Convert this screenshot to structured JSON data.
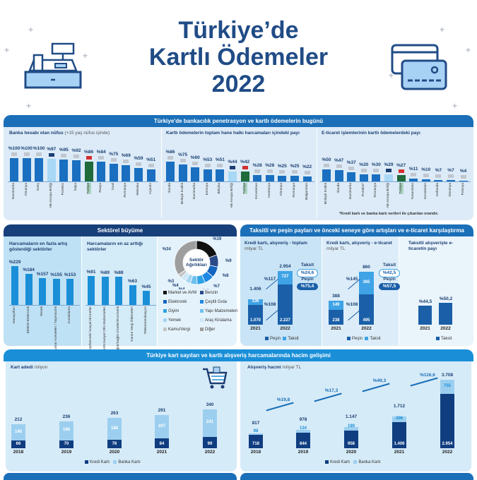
{
  "title": {
    "line1": "Türkiye’de",
    "line2": "Kartlı Ödemeler",
    "line3": "2022"
  },
  "icons": {
    "left": "cash-register-icon",
    "right": "credit-cards-icon",
    "cart": "shopping-cart-icon"
  },
  "colors": {
    "primary": "#1a6fc0",
    "navy": "#173f7a",
    "turkey": "#1f6b3a",
    "eu": "#a8d8f5",
    "panel": "#dcebf7"
  },
  "section1": {
    "header": "Türkiye'de bankacılık penetrasyon ve kartlı ödemelerin bugünü",
    "footnote": "*Kredi kartı ve banka kartı verileri ile çıkarılan orandır.",
    "value_prefix": "%",
    "charts": [
      {
        "title": "Banka hesabı olan nüfus",
        "subtitle": "(+15 yaş nüfus içinde)",
        "bars": [
          {
            "label": "Danimarka",
            "value": 100
          },
          {
            "label": "Almanya",
            "value": 100
          },
          {
            "label": "İsveç",
            "value": 100
          },
          {
            "label": "AB Avrupa Birliği",
            "value": 97,
            "kind": "eu"
          },
          {
            "label": "Portekiz",
            "value": 95
          },
          {
            "label": "İtalya",
            "value": 92
          },
          {
            "label": "Türkiye",
            "value": 86,
            "kind": "tr"
          },
          {
            "label": "Rusya",
            "value": 84
          },
          {
            "label": "İsrail",
            "value": 75
          },
          {
            "label": "Romanya",
            "value": 69
          },
          {
            "label": "Meksika",
            "value": 59
          },
          {
            "label": "Arjantin",
            "value": 51
          }
        ]
      },
      {
        "title": "Kartlı ödemelerin toplam hane halkı harcamaları içindeki payı",
        "subtitle": "",
        "bars": [
          {
            "label": "İrlanda",
            "value": 86
          },
          {
            "label": "Birleşik Krallık",
            "value": 75
          },
          {
            "label": "Danimarka",
            "value": 60
          },
          {
            "label": "Estonya",
            "value": 53
          },
          {
            "label": "Belçika",
            "value": 51
          },
          {
            "label": "AB Avrupa Birliği",
            "value": 44,
            "kind": "eu"
          },
          {
            "label": "Türkiye",
            "value": 42,
            "kind": "tr"
          },
          {
            "label": "Hırvatistan",
            "value": 28
          },
          {
            "label": "Avusturya",
            "value": 28
          },
          {
            "label": "Almanya",
            "value": 25
          },
          {
            "label": "Romanya",
            "value": 25
          },
          {
            "label": "Bulgaristan",
            "value": 22
          }
        ]
      },
      {
        "title": "E-ticaret işlemlerinin kartlı ödemelerdeki payı",
        "subtitle": "",
        "bars": [
          {
            "label": "Birleşik Krallık",
            "value": 50
          },
          {
            "label": "İrlanda",
            "value": 47
          },
          {
            "label": "Danimarka",
            "value": 37
          },
          {
            "label": "Portekiz*",
            "value": 30
          },
          {
            "label": "Romanya",
            "value": 30
          },
          {
            "label": "AB Avrupa Birliği",
            "value": 29,
            "kind": "eu"
          },
          {
            "label": "Türkiye",
            "value": 27,
            "kind": "tr"
          },
          {
            "label": "Yunanistan",
            "value": 11
          },
          {
            "label": "Hırvatistan",
            "value": 10
          },
          {
            "label": "Hollanda",
            "value": 7
          },
          {
            "label": "Slovenya",
            "value": 7
          },
          {
            "label": "Polonya",
            "value": 4
          }
        ]
      }
    ]
  },
  "section2": {
    "header": "Sektörel büyüme",
    "most": {
      "title": "Harcamaların en fazla artış gösterdiği sektörler",
      "bars": [
        {
          "label": "Havayolları",
          "value": 229
        },
        {
          "label": "Elektrik Elektronik",
          "value": 184
        },
        {
          "label": "Yemek",
          "value": 157
        },
        {
          "label": "Seyahat Acenteleri / Taşımacılık",
          "value": 155
        },
        {
          "label": "Konaklama",
          "value": 153
        }
      ]
    },
    "least": {
      "title": "Harcamaların en az arttığı sektörler",
      "bars": [
        {
          "label": "Kulüp/Dernek/ Sosyal Hizmetler",
          "value": 91
        },
        {
          "label": "Eğitim/Kırtasiye/ Ofis Malzemeleri",
          "value": 89
        },
        {
          "label": "Sağlık/Sağlık Ürünleri/Kozmetik",
          "value": 88
        },
        {
          "label": "Kamu/ Vergi Ödemeleri",
          "value": 63
        },
        {
          "label": "Telekomünikasyon",
          "value": 45
        }
      ]
    },
    "donut": {
      "center": "Sektör Ağırlıkları",
      "slices": [
        {
          "label": "Market ve AVM",
          "value": 19,
          "color": "#111111"
        },
        {
          "label": "Benzin",
          "value": 9,
          "color": "#2b4a8a"
        },
        {
          "label": "Elektronik",
          "value": 8,
          "color": "#1565c0"
        },
        {
          "label": "Çeşitli Gıda",
          "value": 7,
          "color": "#1e88e5"
        },
        {
          "label": "Giyim",
          "value": 6,
          "color": "#2ea3e6"
        },
        {
          "label": "Yapı Malzemeleri",
          "value": 5,
          "color": "#6cc0ee"
        },
        {
          "label": "Yemek",
          "value": 4,
          "color": "#a6d6f3"
        },
        {
          "label": "Araç Kiralama",
          "value": 4,
          "color": "#cde7f7"
        },
        {
          "label": "Kamu/Vergi",
          "value": 3,
          "color": "#c4c4c4"
        },
        {
          "label": "Diğer",
          "value": 34,
          "color": "#9e9e9e"
        }
      ]
    }
  },
  "section2b": {
    "header": "Taksitli ve peşin payları ve önceki seneye göre artışları ve e-ticaret karşılaştırma",
    "chartA": {
      "title": "Kredi kartı, alışveriş - toplam",
      "unit": "milyar TL",
      "years": [
        "2021",
        "2022"
      ],
      "pesin": [
        1070,
        2227
      ],
      "taksit": [
        336,
        727
      ],
      "totals": [
        1406,
        2954
      ],
      "growth_taksit": "%117",
      "growth_pesin": "%108",
      "share_taksit_label": "Taksit",
      "share_taksit": "%24,6",
      "share_pesin_label": "Peşin",
      "share_pesin": "%75,4"
    },
    "chartB": {
      "title": "Kredi kartı, alışveriş - e-ticaret",
      "unit": "milyar TL",
      "years": [
        "2021",
        "2022"
      ],
      "pesin": [
        238,
        495
      ],
      "taksit": [
        149,
        365
      ],
      "totals": [
        388,
        860
      ],
      "growth_taksit": "%145",
      "growth_pesin": "%108",
      "share_taksit_label": "Taksit",
      "share_taksit": "%42,5",
      "share_pesin_label": "Peşin",
      "share_pesin": "%57,5"
    },
    "chartC": {
      "title": "Taksitli alışverişte e-ticaretin payı",
      "years": [
        "2021",
        "2022"
      ],
      "values": [
        44.5,
        50.2
      ],
      "labels": [
        "%44,5",
        "%50,2"
      ]
    },
    "legend": {
      "pesin": "Peşin",
      "taksit": "Taksit"
    }
  },
  "section3": {
    "header": "Türkiye kart sayıları ve kartlı alışveriş harcamalarında hacim gelişimi",
    "cards": {
      "title": "Kart adedi",
      "unit": "milyon",
      "years": [
        "2018",
        "2019",
        "2020",
        "2021",
        "2022"
      ],
      "kredi": [
        66,
        70,
        76,
        84,
        99
      ],
      "banka": [
        146,
        166,
        188,
        207,
        241
      ],
      "totals": [
        212,
        236,
        263,
        291,
        340
      ]
    },
    "volume": {
      "title": "Alışveriş hacmi",
      "unit": "milyar TL",
      "years": [
        "2018",
        "2019",
        "2020",
        "2021",
        "2022"
      ],
      "kredi": [
        718,
        844,
        958,
        1406,
        2954
      ],
      "banka": [
        98,
        134,
        189,
        306,
        755
      ],
      "totals": [
        817,
        978,
        1147,
        1712,
        3708
      ],
      "growth": [
        "%19,8",
        "%17,3",
        "%49,3",
        "%116,6"
      ]
    },
    "legend": {
      "kredi": "Kredi Kartı",
      "banka": "Banka Kartı"
    }
  }
}
